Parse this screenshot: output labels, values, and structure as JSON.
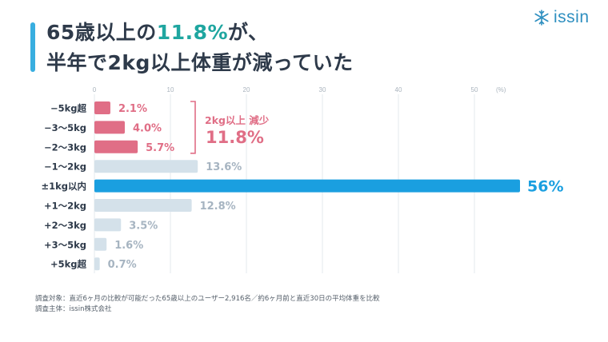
{
  "title": {
    "line1_pre": "65歳以上の",
    "line1_highlight": "11.8%",
    "line1_post": "が、",
    "line2": "半年で2kg以上体重が減っていた"
  },
  "logo": {
    "text": "issin",
    "icon": "snowflake-icon"
  },
  "colors": {
    "title": "#2e3a4a",
    "title_highlight": "#1fa6a0",
    "accent": "#38aee0",
    "loss": "#e06e86",
    "stable": "#1a9fe0",
    "other": "#d4e1ea",
    "other_label": "#a6b4c1",
    "grid": "#e3e8ee",
    "tick": "#a9b3bd"
  },
  "chart_data": {
    "type": "bar",
    "orientation": "horizontal",
    "categories": [
      "−5kg超",
      "−3〜5kg",
      "−2〜3kg",
      "−1〜2kg",
      "±1kg以内",
      "+1〜2kg",
      "+2〜3kg",
      "+3〜5kg",
      "+5kg超"
    ],
    "values": [
      2.1,
      4.0,
      5.7,
      13.6,
      56,
      12.8,
      3.5,
      1.6,
      0.7
    ],
    "value_labels": [
      "2.1%",
      "4.0%",
      "5.7%",
      "13.6%",
      "56%",
      "12.8%",
      "3.5%",
      "1.6%",
      "0.7%"
    ],
    "groups": [
      "loss",
      "loss",
      "loss",
      "other",
      "stable",
      "other",
      "other",
      "other",
      "other"
    ],
    "x_ticks": [
      "0",
      "10",
      "20",
      "30",
      "40",
      "50"
    ],
    "x_tick_values": [
      0,
      10,
      20,
      30,
      40,
      50
    ],
    "unit_label": "(%)",
    "xlim": [
      0,
      57
    ],
    "grid": true,
    "bracket_annotation": {
      "label": "2kg以上 減少",
      "value": "11.8%",
      "covers": [
        "−5kg超",
        "−3〜5kg",
        "−2〜3kg"
      ]
    }
  },
  "notes": {
    "line1": "調査対象：直近6ヶ月の比較が可能だった65歳以上のユーザー2,916名／約6ヶ月前と直近30日の平均体重を比較",
    "line2": "調査主体：issin株式会社"
  }
}
